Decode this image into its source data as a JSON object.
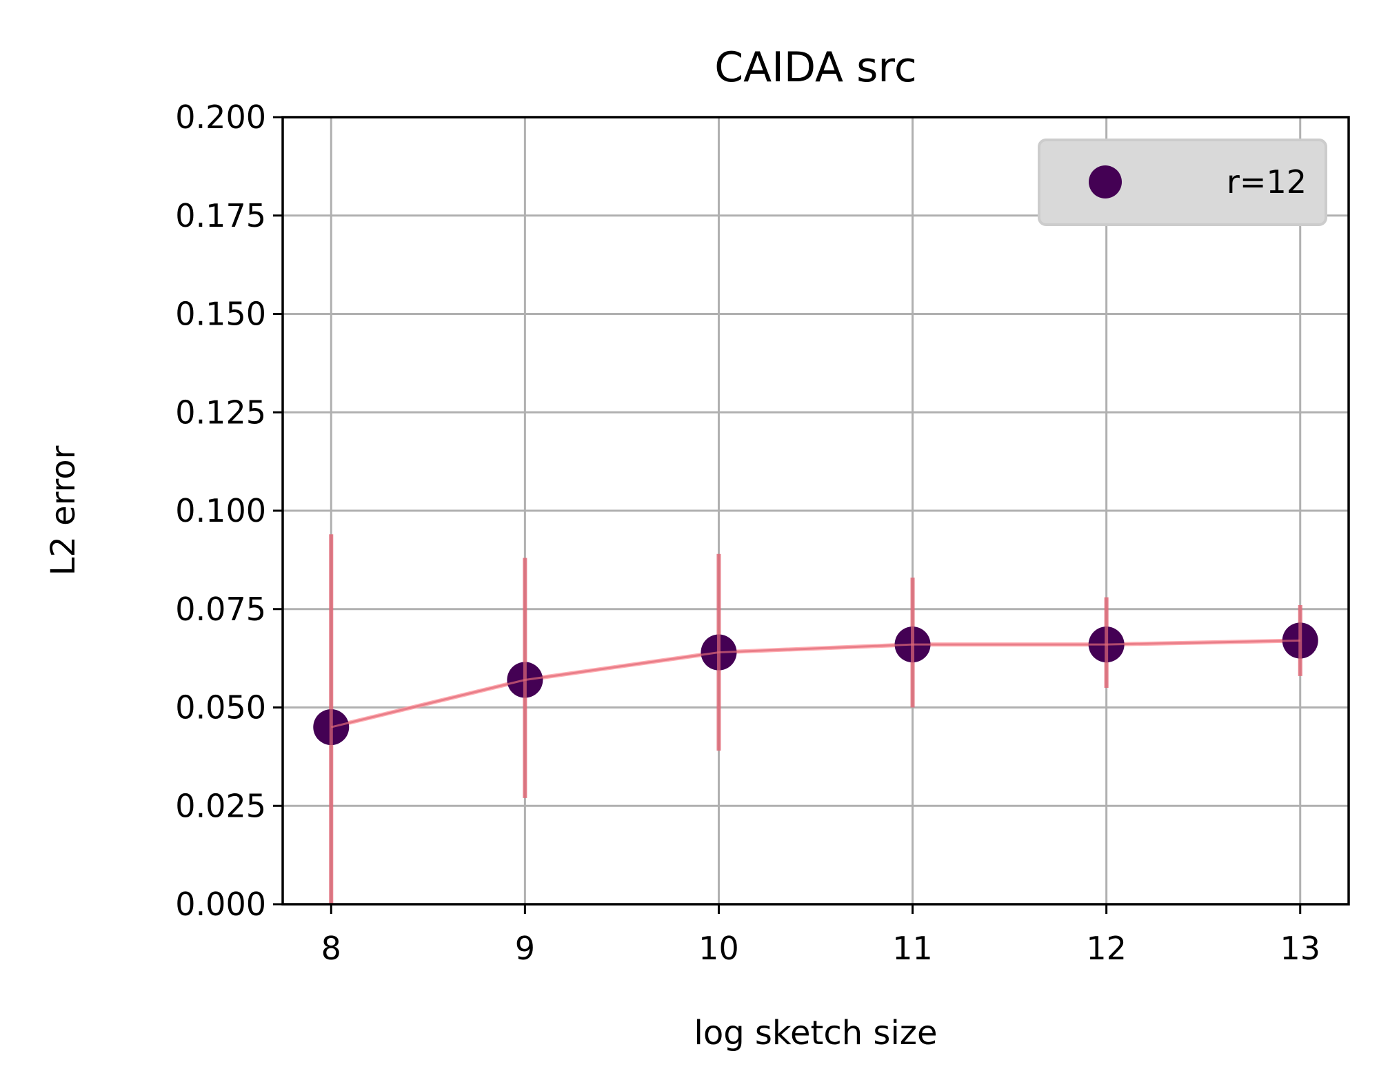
{
  "chart_data": {
    "type": "scatter",
    "title": "CAIDA src",
    "xlabel": "log sketch size",
    "ylabel": "L2 error",
    "xlim": [
      7.75,
      13.25
    ],
    "ylim": [
      0,
      0.2
    ],
    "x_ticks": [
      8,
      9,
      10,
      11,
      12,
      13
    ],
    "x_tick_labels": [
      "8",
      "9",
      "10",
      "11",
      "12",
      "13"
    ],
    "y_ticks": [
      0,
      0.025,
      0.05,
      0.075,
      0.1,
      0.125,
      0.15,
      0.175,
      0.2
    ],
    "y_tick_labels": [
      "0.000",
      "0.025",
      "0.050",
      "0.075",
      "0.100",
      "0.125",
      "0.150",
      "0.175",
      "0.200"
    ],
    "grid": true,
    "legend_position": "top-right",
    "series": [
      {
        "name": "r=12",
        "marker_color": "#440154",
        "line_color": "#ff9aa0",
        "errorbar_color": "#e06a78",
        "x": [
          8,
          9,
          10,
          11,
          12,
          13
        ],
        "y": [
          0.045,
          0.057,
          0.064,
          0.066,
          0.066,
          0.067
        ],
        "yerr_low": [
          0.0,
          0.027,
          0.039,
          0.05,
          0.055,
          0.058
        ],
        "yerr_high": [
          0.094,
          0.088,
          0.089,
          0.083,
          0.078,
          0.076
        ]
      }
    ]
  }
}
